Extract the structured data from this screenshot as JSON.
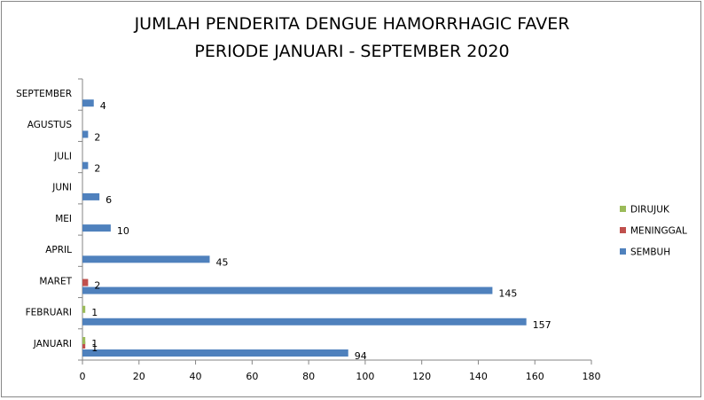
{
  "chart_data": {
    "type": "bar",
    "orientation": "horizontal",
    "title_lines": [
      "JUMLAH PENDERITA DENGUE HAMORRHAGIC FAVER",
      "PERIODE JANUARI - SEPTEMBER 2020"
    ],
    "categories": [
      "JANUARI",
      "FEBRUARI",
      "MARET",
      "APRIL",
      "MEI",
      "JUNI",
      "JULI",
      "AGUSTUS",
      "SEPTEMBER"
    ],
    "series": [
      {
        "name": "SEMBUH",
        "color": "#4F81BD",
        "values": [
          94,
          157,
          145,
          45,
          10,
          6,
          2,
          2,
          4
        ]
      },
      {
        "name": "MENINGGAL",
        "color": "#C0504D",
        "values": [
          1,
          null,
          2,
          null,
          null,
          null,
          null,
          null,
          null
        ]
      },
      {
        "name": "DIRUJUK",
        "color": "#9BBB59",
        "values": [
          1,
          1,
          null,
          null,
          null,
          null,
          null,
          null,
          null
        ]
      }
    ],
    "legend_order": [
      "DIRUJUK",
      "MENINGGAL",
      "SEMBUH"
    ],
    "xlim": [
      0,
      180
    ],
    "x_ticks": [
      0,
      20,
      40,
      60,
      80,
      100,
      120,
      140,
      160,
      180
    ],
    "legend_position": "right",
    "grid": false
  }
}
